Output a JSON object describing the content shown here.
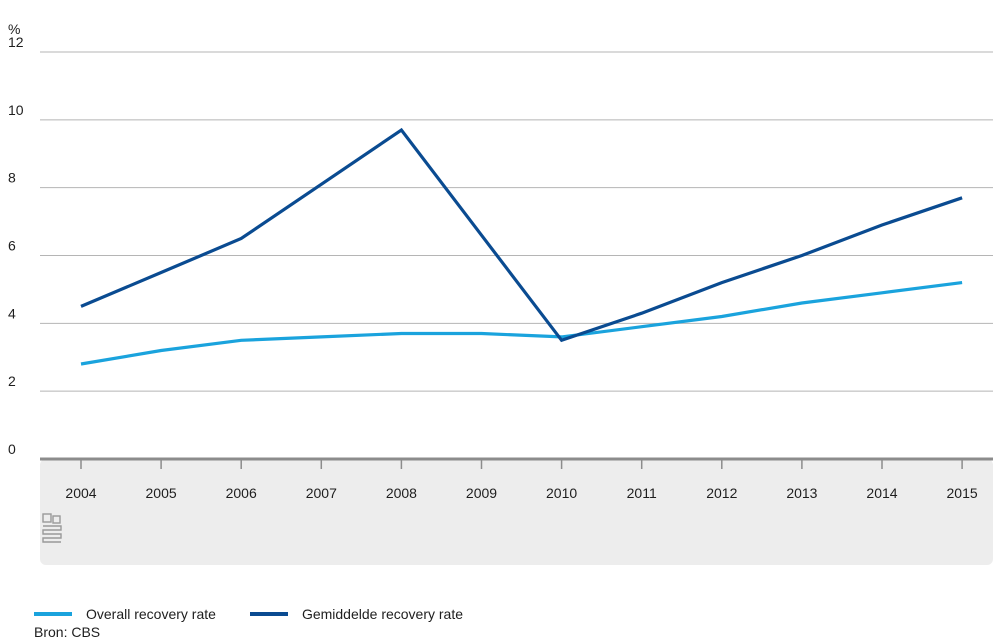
{
  "chart_data": {
    "type": "line",
    "ylabel": "%",
    "ylim": [
      0,
      12
    ],
    "yticks": [
      0,
      2,
      4,
      6,
      8,
      10,
      12
    ],
    "x": [
      "2004",
      "2005",
      "2006",
      "2007",
      "2008",
      "2009",
      "2010",
      "2011",
      "2012",
      "2013",
      "2014",
      "2015"
    ],
    "series": [
      {
        "name": "Overall recovery rate",
        "color": "#1aa3dd",
        "values": [
          2.8,
          3.2,
          3.5,
          3.6,
          3.7,
          3.7,
          3.6,
          3.9,
          4.2,
          4.6,
          4.9,
          5.2
        ]
      },
      {
        "name": "Gemiddelde recovery rate",
        "color": "#0a4b91",
        "values": [
          4.5,
          5.5,
          6.5,
          8.1,
          9.7,
          6.6,
          3.5,
          4.3,
          5.2,
          6.0,
          6.9,
          7.7
        ]
      }
    ],
    "grid": true,
    "legend_position": "bottom-left",
    "logo": "cbs-logo"
  },
  "source": "Bron: CBS"
}
